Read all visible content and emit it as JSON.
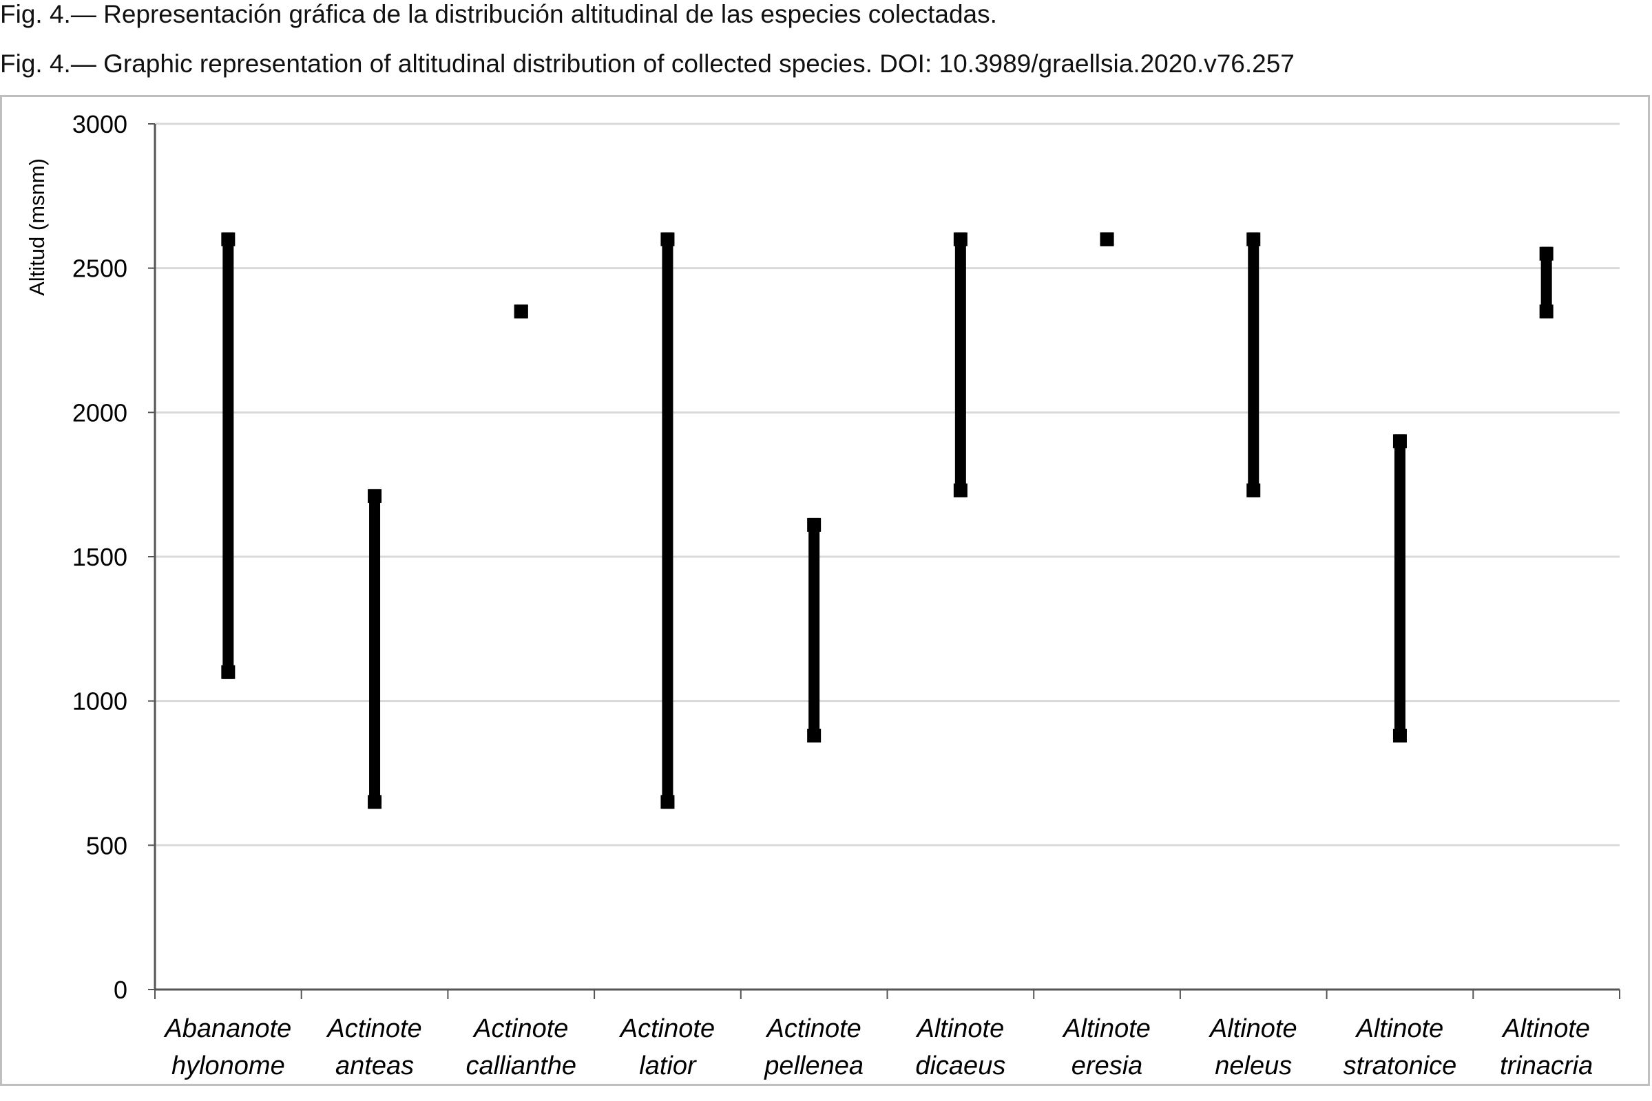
{
  "captions": {
    "spanish": "Fig. 4.— Representación gráfica de la distribución altitudinal de las especies colectadas.",
    "english": "Fig. 4.— Graphic representation of altitudinal distribution of collected species. DOI: 10.3989/graellsia.2020.v76.257"
  },
  "chart_data": {
    "type": "range",
    "ylabel": "Altitud (msnm)",
    "ylim": [
      0,
      3000
    ],
    "yticks": [
      "0",
      "500",
      "1000",
      "1500",
      "2000",
      "2500",
      "3000"
    ],
    "grid": true,
    "color": "#000000",
    "gridColor": "#d9d9d9",
    "categories": [
      {
        "line1": "Abananote",
        "line2": "hylonome",
        "min": 1100,
        "max": 2600
      },
      {
        "line1": "Actinote",
        "line2": "anteas",
        "min": 650,
        "max": 1710
      },
      {
        "line1": "Actinote",
        "line2": "callianthe",
        "min": 2350,
        "max": 2350
      },
      {
        "line1": "Actinote",
        "line2": "latior",
        "min": 650,
        "max": 2600
      },
      {
        "line1": "Actinote",
        "line2": "pellenea",
        "min": 880,
        "max": 1610
      },
      {
        "line1": "Altinote",
        "line2": "dicaeus",
        "min": 1730,
        "max": 2600
      },
      {
        "line1": "Altinote",
        "line2": "eresia",
        "min": 2600,
        "max": 2600
      },
      {
        "line1": "Altinote",
        "line2": "neleus",
        "min": 1730,
        "max": 2600
      },
      {
        "line1": "Altinote",
        "line2": "stratonice",
        "min": 880,
        "max": 1900
      },
      {
        "line1": "Altinote",
        "line2": "trinacria",
        "min": 2350,
        "max": 2550
      }
    ]
  }
}
